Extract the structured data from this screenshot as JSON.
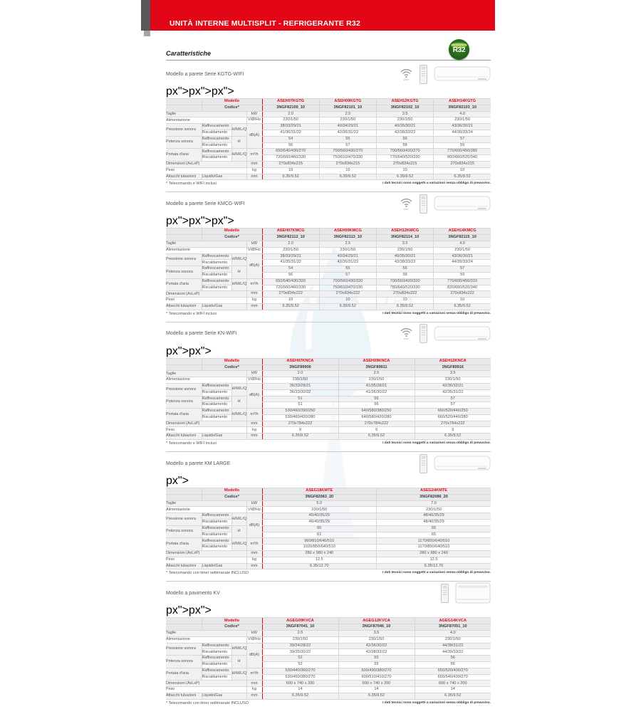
{
  "page": {
    "banner_title": "UNITÀ INTERNE MULTISPLIT - REFRIGERANTE R32",
    "heading": "Caratteristiche",
    "tech_note": "I dati tecnici sono soggetti a variazioni senza obbligo di preavviso.",
    "accent_red": "#e30617",
    "badge": {
      "top_text": "REFRIGERANTE",
      "label": "R32",
      "color_dark": "#1e5f17",
      "color_light": "#8fc045"
    },
    "icons": {
      "wifi_caption": "WIFI"
    }
  },
  "labels": {
    "modello": "Modello",
    "codice": "Codice*",
    "taglie": "Taglie",
    "alimentazione": "Alimentazione",
    "pressione": "Pressione sonora",
    "potenza": "Potenza sonora",
    "portata": "Portata d'aria",
    "raffrescamento": "Raffrescamento",
    "riscaldamento": "Riscaldamento",
    "dimensioni": "Dimensioni (AxLxP)",
    "peso": "Peso",
    "attacchi": "Attacchi tubazioni",
    "liquido_gas": "Liquido/Gas",
    "hmlq": "H/M/L/Q",
    "h": "H",
    "unit_kw": "kW",
    "unit_alim": "V/Ø/Hz",
    "unit_db": "dB(A)",
    "unit_m3h": "m³/h",
    "unit_mm": "mm",
    "unit_kg": "kg"
  },
  "tables": [
    {
      "section_label": "Modello a parete Serie KGTG-WIFI",
      "wifi": true,
      "unit_style": "wall",
      "footnote": "* Telecomando e WIFI inclusi",
      "models": [
        "ASEH07KGTG",
        "ASEH09KGTG",
        "ASEH12KGTG",
        "ASEH14KGTG"
      ],
      "codes": [
        "3NGF82100_10",
        "3NGF82101_10",
        "3NGF82102_10",
        "3NGF82103_10"
      ],
      "taglie": [
        "2.0",
        "2.5",
        "3.5",
        "4.0"
      ],
      "alimentazione": [
        "230/1/50",
        "230/1/50",
        "230/1/50",
        "230/1/50"
      ],
      "pressione_raff": [
        "38/33/29/21",
        "40/34/29/21",
        "40/35/30/21",
        "43/36/30/21"
      ],
      "pressione_risc": [
        "41/36/31/22",
        "42/36/31/22",
        "42/38/33/22",
        "44/39/33/24"
      ],
      "potenza_raff": [
        "54",
        "55",
        "56",
        "57"
      ],
      "potenza_risc": [
        "56",
        "57",
        "58",
        "59"
      ],
      "portata_raff": [
        "650/540/430/270",
        "700/560/430/270",
        "700/560/430/270",
        "770/600/450/280"
      ],
      "portata_risc": [
        "720/560/460/330",
        "750/610/470/330",
        "770/640/520/330",
        "800/660/520/340"
      ],
      "dimensioni": [
        "270x834x215",
        "270x834x215",
        "270x834x215",
        "270x834x215"
      ],
      "peso": [
        "10",
        "10",
        "10",
        "10"
      ],
      "attacchi": [
        "6.35/9.52",
        "6.35/9.52",
        "6.35/9.52",
        "6.35/9.52"
      ]
    },
    {
      "section_label": "Modello a parete Serie KMCG-WIFI",
      "wifi": true,
      "unit_style": "wall",
      "footnote": "* Telecomando e WIFI inclusi",
      "models": [
        "ASEH07KMCG",
        "ASEH09KMCG",
        "ASEH12KMCG",
        "ASEH14KMCG"
      ],
      "codes": [
        "3NGF82112_10",
        "3NGF82113_10",
        "3NGF82114_10",
        "3NGF82115_10"
      ],
      "taglie": [
        "2.0",
        "2.5",
        "3.5",
        "4.0"
      ],
      "alimentazione": [
        "230/1/50",
        "230/1/50",
        "230/1/50",
        "230/1/50"
      ],
      "pressione_raff": [
        "38/33/29/21",
        "40/34/29/21",
        "40/35/30/21",
        "43/36/30/21"
      ],
      "pressione_risc": [
        "41/35/31/22",
        "42/36/31/22",
        "42/38/33/22",
        "44/39/33/24"
      ],
      "potenza_raff": [
        "54",
        "55",
        "56",
        "57"
      ],
      "potenza_risc": [
        "56",
        "57",
        "58",
        "59"
      ],
      "portata_raff": [
        "650/540/430/320",
        "700/560/430/320",
        "700/560/430/320",
        "770/600/450/310"
      ],
      "portata_risc": [
        "720/560/460/330",
        "750/610/470/330",
        "780/640/520/330",
        "820/660/520/340"
      ],
      "dimensioni": [
        "270x834x222",
        "270x834x222",
        "270x834x222",
        "270x834x222"
      ],
      "peso": [
        "10",
        "10",
        "10",
        "10"
      ],
      "attacchi": [
        "6.35/9.52",
        "6.35/9.52",
        "6.35/9.52",
        "6.35/9.52"
      ]
    },
    {
      "section_label": "Modello a parete Serie KN-WIFI",
      "wifi": true,
      "unit_style": "wall",
      "footnote": "* Telecomando e WIFI inclusi",
      "models": [
        "ASEH07KNCA",
        "ASEH09KNCA",
        "ASEH12KNCA"
      ],
      "codes": [
        "3NGF89906",
        "3NGF89911",
        "3NGF89916"
      ],
      "taglie": [
        "2.0",
        "2.5",
        "3.5"
      ],
      "alimentazione": [
        "230/1/50",
        "230/1/50",
        "230/1/50"
      ],
      "pressione_raff": [
        "36/33/28/21",
        "41/35/28/21",
        "42/36/32/21"
      ],
      "pressione_risc": [
        "36/33/30/22",
        "41/36/30/22",
        "42/35/31/22"
      ],
      "potenza_raff": [
        "51",
        "56",
        "57"
      ],
      "potenza_risc": [
        "51",
        "56",
        "57"
      ],
      "portata_raff": [
        "530/460/390/250",
        "640/580/380/250",
        "660/520/440/250"
      ],
      "portata_risc": [
        "530/460/420/280",
        "640/580/420/280",
        "660/520/440/280"
      ],
      "dimensioni": [
        "270x784x222",
        "270x784x222",
        "270x784x222"
      ],
      "peso": [
        "9",
        "9",
        "9"
      ],
      "attacchi": [
        "6.35/9.52",
        "6.35/9.52",
        "6.35/9.52"
      ]
    },
    {
      "section_label": "Modello a parete KM LARGE",
      "wifi": false,
      "unit_style": "wall",
      "footnote": "* Telecomando con timer settimanale INCLUSO",
      "models": [
        "ASEG18KMTE",
        "ASEG24KMTE"
      ],
      "codes": [
        "3NGF82083_20",
        "3NGF82086_20"
      ],
      "taglie": [
        "5.0",
        "7.0"
      ],
      "alimentazione": [
        "230/1/50",
        "230/1/50"
      ],
      "pressione_raff": [
        "45/40/35/29",
        "48/40/35/29"
      ],
      "pressione_risc": [
        "46/40/35/29",
        "48/40/35/29"
      ],
      "potenza_raff": [
        "60",
        "65"
      ],
      "potenza_risc": [
        "61",
        "65"
      ],
      "portata_raff": [
        "960/810/640/510",
        "1170/850/640/510"
      ],
      "portata_risc": [
        "1020/850/640/510",
        "1170/850/640/510"
      ],
      "dimensioni": [
        "280 x 980 x 240",
        "280 x 980 x 240"
      ],
      "peso": [
        "12.5",
        "12.5"
      ],
      "attacchi": [
        "6.35/12.70",
        "6.35/12.70"
      ]
    },
    {
      "section_label": "Modello a pavimento KV",
      "wifi": false,
      "unit_style": "floor",
      "footnote": "* Telecomando con timer settimanale INCLUSO",
      "models": [
        "AGEG09KVCA",
        "AGEG12KVCA",
        "AGEG14KVCA"
      ],
      "codes": [
        "3NGF87041_10",
        "3NGF87046_10",
        "3NGF87051_10"
      ],
      "taglie": [
        "2.5",
        "3.5",
        "4.0"
      ],
      "alimentazione": [
        "230/1/50",
        "230/1/50",
        "230/1/50"
      ],
      "pressione_raff": [
        "39/34/28/22",
        "42/36/30/22",
        "44/38/31/22"
      ],
      "pressione_risc": [
        "39/35/30/22",
        "42/38/32/22",
        "44/39/33/22"
      ],
      "potenza_raff": [
        "52",
        "55",
        "56"
      ],
      "potenza_risc": [
        "52",
        "55",
        "56"
      ],
      "portata_raff": [
        "530/440/360/270",
        "600/490/380/270",
        "650/520/400/270"
      ],
      "portata_risc": [
        "530/460/380/270",
        "600/510/410/270",
        "650/540/430/270"
      ],
      "dimensioni": [
        "600 x 740 x 200",
        "600 x 740 x 200",
        "600 x 740 x 200"
      ],
      "peso": [
        "14",
        "14",
        "14"
      ],
      "attacchi": [
        "6.35/9.52",
        "6.35/9.52",
        "6.35/9.52"
      ]
    }
  ]
}
